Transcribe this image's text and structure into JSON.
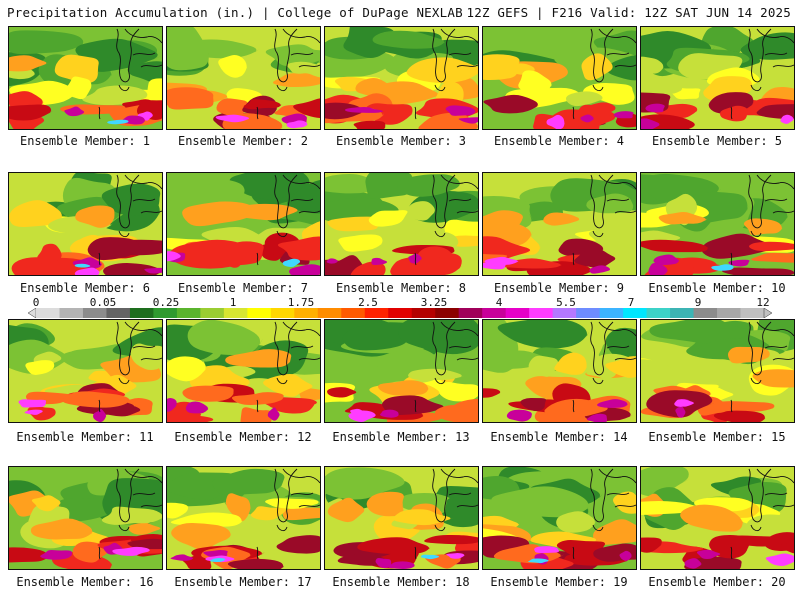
{
  "header": {
    "left": "Precipitation Accumulation (in.) | College of DuPage NEXLAB",
    "right": "12Z GEFS | F216 Valid: 12Z SAT JUN 14 2025"
  },
  "colorbar": {
    "tick_labels": [
      "0",
      "0.05",
      "0.25",
      "1",
      "1.75",
      "2.5",
      "3.25",
      "4",
      "5.5",
      "7",
      "9",
      "12"
    ],
    "colors": [
      "#dcdcdc",
      "#b4b4b4",
      "#8c8c8c",
      "#646464",
      "#1e6e1e",
      "#2f9a2f",
      "#5ab42d",
      "#9acd32",
      "#d7e632",
      "#ffff00",
      "#ffd700",
      "#ffb000",
      "#ff8c00",
      "#ff5a00",
      "#ff2200",
      "#e00000",
      "#b40000",
      "#8c0000",
      "#a0005a",
      "#c8009a",
      "#e600c8",
      "#ff3cff",
      "#b478ff",
      "#6e8cff",
      "#3cb4ff",
      "#00e6ff",
      "#3cd2c8",
      "#3cb4b4",
      "#8c8c8c",
      "#a8a8a8",
      "#c0c0c0"
    ]
  },
  "panels": [
    {
      "label": "Ensemble Member: 1"
    },
    {
      "label": "Ensemble Member: 2"
    },
    {
      "label": "Ensemble Member: 3"
    },
    {
      "label": "Ensemble Member: 4"
    },
    {
      "label": "Ensemble Member: 5"
    },
    {
      "label": "Ensemble Member: 6"
    },
    {
      "label": "Ensemble Member: 7"
    },
    {
      "label": "Ensemble Member: 8"
    },
    {
      "label": "Ensemble Member: 9"
    },
    {
      "label": "Ensemble Member: 10"
    },
    {
      "label": "Ensemble Member: 11"
    },
    {
      "label": "Ensemble Member: 12"
    },
    {
      "label": "Ensemble Member: 13"
    },
    {
      "label": "Ensemble Member: 14"
    },
    {
      "label": "Ensemble Member: 15"
    },
    {
      "label": "Ensemble Member: 16"
    },
    {
      "label": "Ensemble Member: 17"
    },
    {
      "label": "Ensemble Member: 18"
    },
    {
      "label": "Ensemble Member: 19"
    },
    {
      "label": "Ensemble Member: 20"
    }
  ]
}
